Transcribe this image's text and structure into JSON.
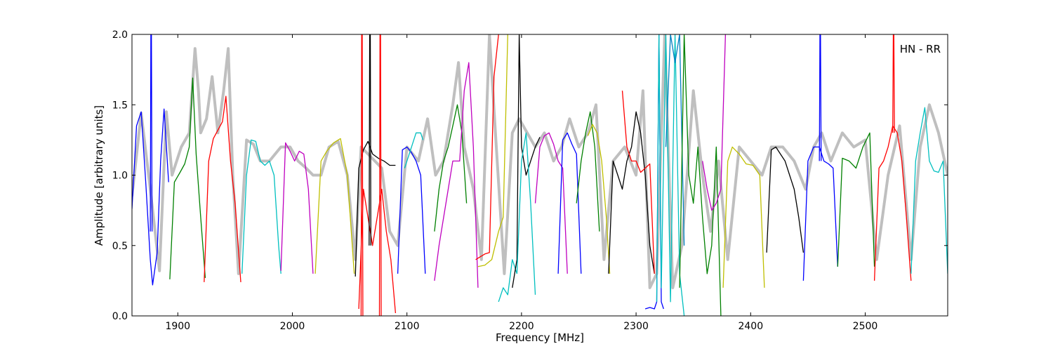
{
  "chart_data": {
    "type": "line",
    "title": "",
    "xlabel": "Frequency [MHz]",
    "ylabel": "Amplitude [arbitrary units]",
    "xlim": [
      1860,
      2572
    ],
    "ylim": [
      0.0,
      2.0
    ],
    "x_ticks": [
      1900,
      2000,
      2100,
      2200,
      2300,
      2400,
      2500
    ],
    "y_ticks": [
      0.0,
      0.5,
      1.0,
      1.5,
      2.0
    ],
    "x_tick_labels": [
      "1900",
      "2000",
      "2100",
      "2200",
      "2300",
      "2400",
      "2500"
    ],
    "y_tick_labels": [
      "0.0",
      "0.5",
      "1.0",
      "1.5",
      "2.0"
    ],
    "grid": false,
    "legend": "none",
    "annotation": "HN - RR",
    "background_series": {
      "color": "#bfbfbf",
      "x": [
        1860,
        1868,
        1876,
        1884,
        1890,
        1895,
        1903,
        1910,
        1915,
        1918,
        1920,
        1925,
        1930,
        1935,
        1940,
        1944,
        1948,
        1953,
        1960,
        1966,
        1972,
        1980,
        1990,
        1998,
        2005,
        2012,
        2018,
        2025,
        2032,
        2040,
        2048,
        2055,
        2060,
        2066,
        2072,
        2078,
        2085,
        2092,
        2100,
        2110,
        2118,
        2125,
        2132,
        2140,
        2145,
        2150,
        2158,
        2165,
        2172,
        2178,
        2185,
        2192,
        2198,
        2205,
        2212,
        2220,
        2228,
        2235,
        2242,
        2250,
        2258,
        2265,
        2272,
        2280,
        2290,
        2300,
        2306,
        2312,
        2318,
        2325,
        2332,
        2340,
        2350,
        2358,
        2365,
        2372,
        2380,
        2390,
        2400,
        2410,
        2418,
        2428,
        2438,
        2448,
        2455,
        2462,
        2470,
        2480,
        2490,
        2500,
        2510,
        2520,
        2530,
        2540,
        2548,
        2556,
        2564,
        2572
      ],
      "y": [
        0.85,
        1.44,
        0.9,
        0.32,
        1.45,
        1.0,
        1.2,
        1.3,
        1.9,
        1.6,
        1.3,
        1.4,
        1.7,
        1.3,
        1.6,
        1.9,
        1.0,
        0.3,
        1.25,
        1.22,
        1.1,
        1.1,
        1.2,
        1.2,
        1.1,
        1.05,
        1.0,
        1.0,
        1.2,
        1.24,
        1.0,
        0.4,
        1.2,
        1.15,
        1.1,
        1.05,
        0.6,
        0.5,
        1.2,
        1.1,
        1.4,
        1.0,
        1.1,
        1.5,
        1.8,
        1.2,
        0.9,
        0.4,
        2.0,
        1.2,
        0.3,
        1.3,
        1.4,
        1.3,
        1.2,
        1.3,
        1.1,
        1.2,
        1.4,
        1.2,
        1.3,
        1.5,
        0.4,
        1.1,
        1.2,
        1.0,
        1.6,
        0.2,
        0.3,
        2.0,
        0.2,
        0.5,
        1.6,
        1.0,
        0.6,
        1.1,
        0.4,
        1.2,
        1.1,
        1.0,
        1.2,
        1.2,
        1.1,
        0.9,
        1.2,
        1.3,
        1.1,
        1.3,
        1.2,
        1.25,
        0.4,
        1.0,
        1.35,
        0.4,
        1.2,
        1.5,
        1.3,
        1.0
      ]
    },
    "series": [
      {
        "color": "#0000ff",
        "x": [
          1860,
          1864,
          1868,
          1872,
          1876,
          1878,
          1882,
          1885,
          1888,
          1892
        ],
        "y": [
          0.76,
          1.35,
          1.45,
          0.95,
          0.4,
          0.22,
          0.45,
          1.1,
          1.47,
          0.95
        ]
      },
      {
        "color": "#0000ff",
        "x": [
          1876,
          1876.5,
          1877,
          1877.5
        ],
        "y": [
          0.6,
          2.0,
          2.0,
          0.6
        ]
      },
      {
        "color": "#008000",
        "x": [
          1893,
          1897,
          1902,
          1906,
          1910,
          1913,
          1916,
          1920,
          1924
        ],
        "y": [
          0.26,
          0.95,
          1.02,
          1.08,
          1.2,
          1.69,
          1.15,
          0.7,
          0.27
        ]
      },
      {
        "color": "#ff0000",
        "x": [
          1923,
          1927,
          1931,
          1935,
          1939,
          1942,
          1946,
          1950,
          1955
        ],
        "y": [
          0.24,
          1.1,
          1.26,
          1.32,
          1.38,
          1.56,
          1.1,
          0.8,
          0.24
        ]
      },
      {
        "color": "#00bfbf",
        "x": [
          1956,
          1960,
          1964,
          1968,
          1972,
          1976,
          1980,
          1984,
          1988,
          1990
        ],
        "y": [
          0.3,
          1.0,
          1.25,
          1.24,
          1.1,
          1.07,
          1.1,
          1.0,
          0.5,
          0.3
        ]
      },
      {
        "color": "#bf00bf",
        "x": [
          1990,
          1994,
          1998,
          2002,
          2006,
          2010,
          2014,
          2018
        ],
        "y": [
          0.32,
          1.23,
          1.17,
          1.1,
          1.17,
          1.15,
          0.9,
          0.3
        ]
      },
      {
        "color": "#bfbf00",
        "x": [
          2020,
          2025,
          2030,
          2036,
          2042,
          2048,
          2054
        ],
        "y": [
          0.3,
          1.1,
          1.17,
          1.23,
          1.26,
          1.0,
          0.3
        ]
      },
      {
        "color": "#000000",
        "x": [
          2055,
          2058,
          2062,
          2066,
          2070,
          2075,
          2080,
          2085,
          2090
        ],
        "y": [
          0.28,
          1.05,
          1.18,
          1.24,
          1.15,
          1.12,
          1.1,
          1.07,
          1.07
        ]
      },
      {
        "color": "#ff0000",
        "x": [
          2058,
          2062,
          2066,
          2070,
          2074,
          2078,
          2082,
          2086,
          2090
        ],
        "y": [
          0.05,
          0.9,
          0.7,
          0.5,
          0.7,
          0.9,
          0.6,
          0.4,
          0.02
        ]
      },
      {
        "color": "#ff0000",
        "x": [
          2060,
          2060.5,
          2061,
          2061.5
        ],
        "y": [
          0.0,
          2.0,
          2.0,
          0.0
        ]
      },
      {
        "color": "#000000",
        "x": [
          2067,
          2067.5,
          2068,
          2068.5
        ],
        "y": [
          0.5,
          2.0,
          2.0,
          0.5
        ]
      },
      {
        "color": "#ff0000",
        "x": [
          2076,
          2076.5,
          2077,
          2077.5
        ],
        "y": [
          0.0,
          2.0,
          2.0,
          0.0
        ]
      },
      {
        "color": "#0000ff",
        "x": [
          2092,
          2096,
          2100,
          2104,
          2108,
          2112,
          2116
        ],
        "y": [
          0.3,
          1.18,
          1.2,
          1.16,
          1.1,
          1.0,
          0.3
        ]
      },
      {
        "color": "#00bfbf",
        "x": [
          2098,
          2104,
          2108,
          2112,
          2114
        ],
        "y": [
          1.05,
          1.2,
          1.3,
          1.3,
          1.25
        ]
      },
      {
        "color": "#008000",
        "x": [
          2124,
          2128,
          2132,
          2136,
          2140,
          2144,
          2148,
          2152
        ],
        "y": [
          0.6,
          0.9,
          1.1,
          1.2,
          1.35,
          1.5,
          1.3,
          0.8
        ]
      },
      {
        "color": "#bf00bf",
        "x": [
          2124,
          2128,
          2134,
          2140,
          2146,
          2150,
          2154,
          2158,
          2162
        ],
        "y": [
          0.25,
          0.5,
          0.8,
          1.1,
          1.1,
          1.6,
          1.8,
          1.2,
          0.2
        ]
      },
      {
        "color": "#ff0000",
        "x": [
          2160,
          2164,
          2168,
          2172,
          2176,
          2180
        ],
        "y": [
          0.4,
          0.42,
          0.44,
          0.45,
          1.7,
          2.0
        ]
      },
      {
        "color": "#bfbf00",
        "x": [
          2162,
          2168,
          2174,
          2180,
          2184,
          2188
        ],
        "y": [
          0.35,
          0.36,
          0.4,
          0.6,
          0.7,
          2.0
        ]
      },
      {
        "color": "#00bfbf",
        "x": [
          2180,
          2184,
          2188,
          2192,
          2196
        ],
        "y": [
          0.1,
          0.2,
          0.15,
          0.4,
          0.3
        ]
      },
      {
        "color": "#000000",
        "x": [
          2192,
          2196,
          2198,
          2200,
          2204,
          2208,
          2212,
          2216
        ],
        "y": [
          0.2,
          0.4,
          2.0,
          1.2,
          1.0,
          1.1,
          1.2,
          1.27
        ]
      },
      {
        "color": "#00bfbf",
        "x": [
          2196,
          2200,
          2204,
          2208,
          2212
        ],
        "y": [
          0.3,
          1.1,
          1.3,
          0.8,
          0.15
        ]
      },
      {
        "color": "#bf00bf",
        "x": [
          2212,
          2216,
          2220,
          2224,
          2228,
          2232,
          2236,
          2240
        ],
        "y": [
          0.8,
          1.2,
          1.28,
          1.3,
          1.22,
          1.1,
          1.05,
          0.3
        ]
      },
      {
        "color": "#0000ff",
        "x": [
          2232,
          2236,
          2240,
          2244,
          2248,
          2252
        ],
        "y": [
          0.3,
          1.25,
          1.3,
          1.22,
          1.15,
          0.3
        ]
      },
      {
        "color": "#008000",
        "x": [
          2248,
          2252,
          2256,
          2260,
          2264,
          2268
        ],
        "y": [
          0.8,
          1.1,
          1.3,
          1.45,
          1.2,
          0.6
        ]
      },
      {
        "color": "#bfbf00",
        "x": [
          2258,
          2262,
          2266,
          2270,
          2274,
          2277
        ],
        "y": [
          1.28,
          1.36,
          1.3,
          1.1,
          0.7,
          0.3
        ]
      },
      {
        "color": "#000000",
        "x": [
          2276,
          2280,
          2284,
          2288,
          2292,
          2296,
          2300,
          2304,
          2308,
          2312,
          2316
        ],
        "y": [
          0.3,
          1.1,
          1.0,
          0.9,
          1.1,
          1.2,
          1.45,
          1.3,
          1.0,
          0.5,
          0.3
        ]
      },
      {
        "color": "#ff0000",
        "x": [
          2288,
          2292,
          2296,
          2300,
          2304,
          2308,
          2312,
          2316
        ],
        "y": [
          1.6,
          1.2,
          1.1,
          1.1,
          1.02,
          1.05,
          1.08,
          0.3
        ]
      },
      {
        "color": "#0000ff",
        "x": [
          2308,
          2312,
          2316,
          2318,
          2320,
          2322,
          2324
        ],
        "y": [
          0.05,
          0.06,
          0.05,
          0.1,
          2.0,
          0.1,
          0.05
        ]
      },
      {
        "color": "#00bfbf",
        "x": [
          2318,
          2320,
          2322,
          2326,
          2330,
          2334,
          2338,
          2342
        ],
        "y": [
          0.1,
          2.0,
          0.2,
          2.0,
          0.1,
          2.0,
          0.3,
          0.0
        ]
      },
      {
        "color": "#0080c0",
        "x": [
          2326,
          2330,
          2334,
          2338,
          2342
        ],
        "y": [
          1.2,
          2.0,
          1.8,
          2.0,
          0.5
        ]
      },
      {
        "color": "#008000",
        "x": [
          2338,
          2342,
          2346,
          2350,
          2354,
          2358,
          2362,
          2366,
          2370,
          2374
        ],
        "y": [
          0.2,
          2.0,
          1.0,
          0.8,
          1.2,
          0.7,
          0.3,
          0.5,
          1.2,
          0.0
        ]
      },
      {
        "color": "#bf00bf",
        "x": [
          2358,
          2362,
          2366,
          2370,
          2374,
          2378
        ],
        "y": [
          1.1,
          0.9,
          0.75,
          0.8,
          0.9,
          2.0
        ]
      },
      {
        "color": "#bfbf00",
        "x": [
          2376,
          2380,
          2384,
          2390,
          2396,
          2402,
          2408,
          2412
        ],
        "y": [
          0.2,
          1.1,
          1.2,
          1.15,
          1.08,
          1.07,
          1.0,
          0.2
        ]
      },
      {
        "color": "#000000",
        "x": [
          2414,
          2418,
          2422,
          2426,
          2430,
          2434,
          2438,
          2442,
          2446
        ],
        "y": [
          0.45,
          1.18,
          1.2,
          1.15,
          1.1,
          1.0,
          0.9,
          0.7,
          0.45
        ]
      },
      {
        "color": "#0000ff",
        "x": [
          2446,
          2450,
          2455,
          2460,
          2464,
          2468,
          2472,
          2476
        ],
        "y": [
          0.25,
          1.1,
          1.2,
          1.2,
          1.1,
          1.08,
          1.05,
          0.35
        ]
      },
      {
        "color": "#0000ff",
        "x": [
          2460,
          2460.5,
          2461,
          2461.5
        ],
        "y": [
          1.1,
          2.0,
          2.0,
          1.1
        ]
      },
      {
        "color": "#008000",
        "x": [
          2476,
          2480,
          2486,
          2492,
          2498,
          2504,
          2508
        ],
        "y": [
          0.35,
          1.12,
          1.1,
          1.05,
          1.2,
          1.3,
          0.35
        ]
      },
      {
        "color": "#ff0000",
        "x": [
          2508,
          2512,
          2516,
          2520,
          2524,
          2528,
          2532,
          2536,
          2540
        ],
        "y": [
          0.25,
          1.05,
          1.1,
          1.2,
          1.35,
          1.3,
          1.1,
          0.7,
          0.25
        ]
      },
      {
        "color": "#ff0000",
        "x": [
          2524,
          2524.5,
          2525,
          2525.5
        ],
        "y": [
          1.3,
          2.0,
          2.0,
          1.3
        ]
      },
      {
        "color": "#00bfbf",
        "x": [
          2540,
          2544,
          2548,
          2552,
          2556,
          2560,
          2564,
          2568,
          2572
        ],
        "y": [
          0.3,
          1.1,
          1.3,
          1.48,
          1.1,
          1.03,
          1.02,
          1.1,
          0.3
        ]
      }
    ]
  }
}
